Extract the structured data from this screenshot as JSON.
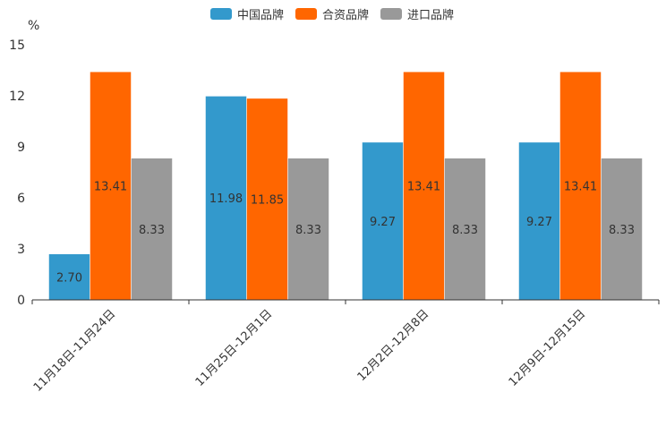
{
  "chart_data": {
    "type": "bar",
    "ylabel": "%",
    "ylim": [
      0,
      15
    ],
    "yticks": [
      0,
      3,
      6,
      9,
      12,
      15
    ],
    "legend_position": "top-center",
    "categories": [
      "11月18日-11月24日",
      "11月25日-12月1日",
      "12月2日-12月8日",
      "12月9日-12月15日"
    ],
    "series": [
      {
        "name": "中国品牌",
        "color": "#3399cc",
        "values": [
          2.7,
          11.98,
          9.27,
          9.27
        ],
        "labels": [
          "2.70",
          "11.98",
          "9.27",
          "9.27"
        ]
      },
      {
        "name": "合资品牌",
        "color": "#ff6600",
        "values": [
          13.41,
          11.85,
          13.41,
          13.41
        ],
        "labels": [
          "13.41",
          "11.85",
          "13.41",
          "13.41"
        ]
      },
      {
        "name": "进口品牌",
        "color": "#999999",
        "values": [
          8.33,
          8.33,
          8.33,
          8.33
        ],
        "labels": [
          "8.33",
          "8.33",
          "8.33",
          "8.33"
        ]
      }
    ]
  }
}
